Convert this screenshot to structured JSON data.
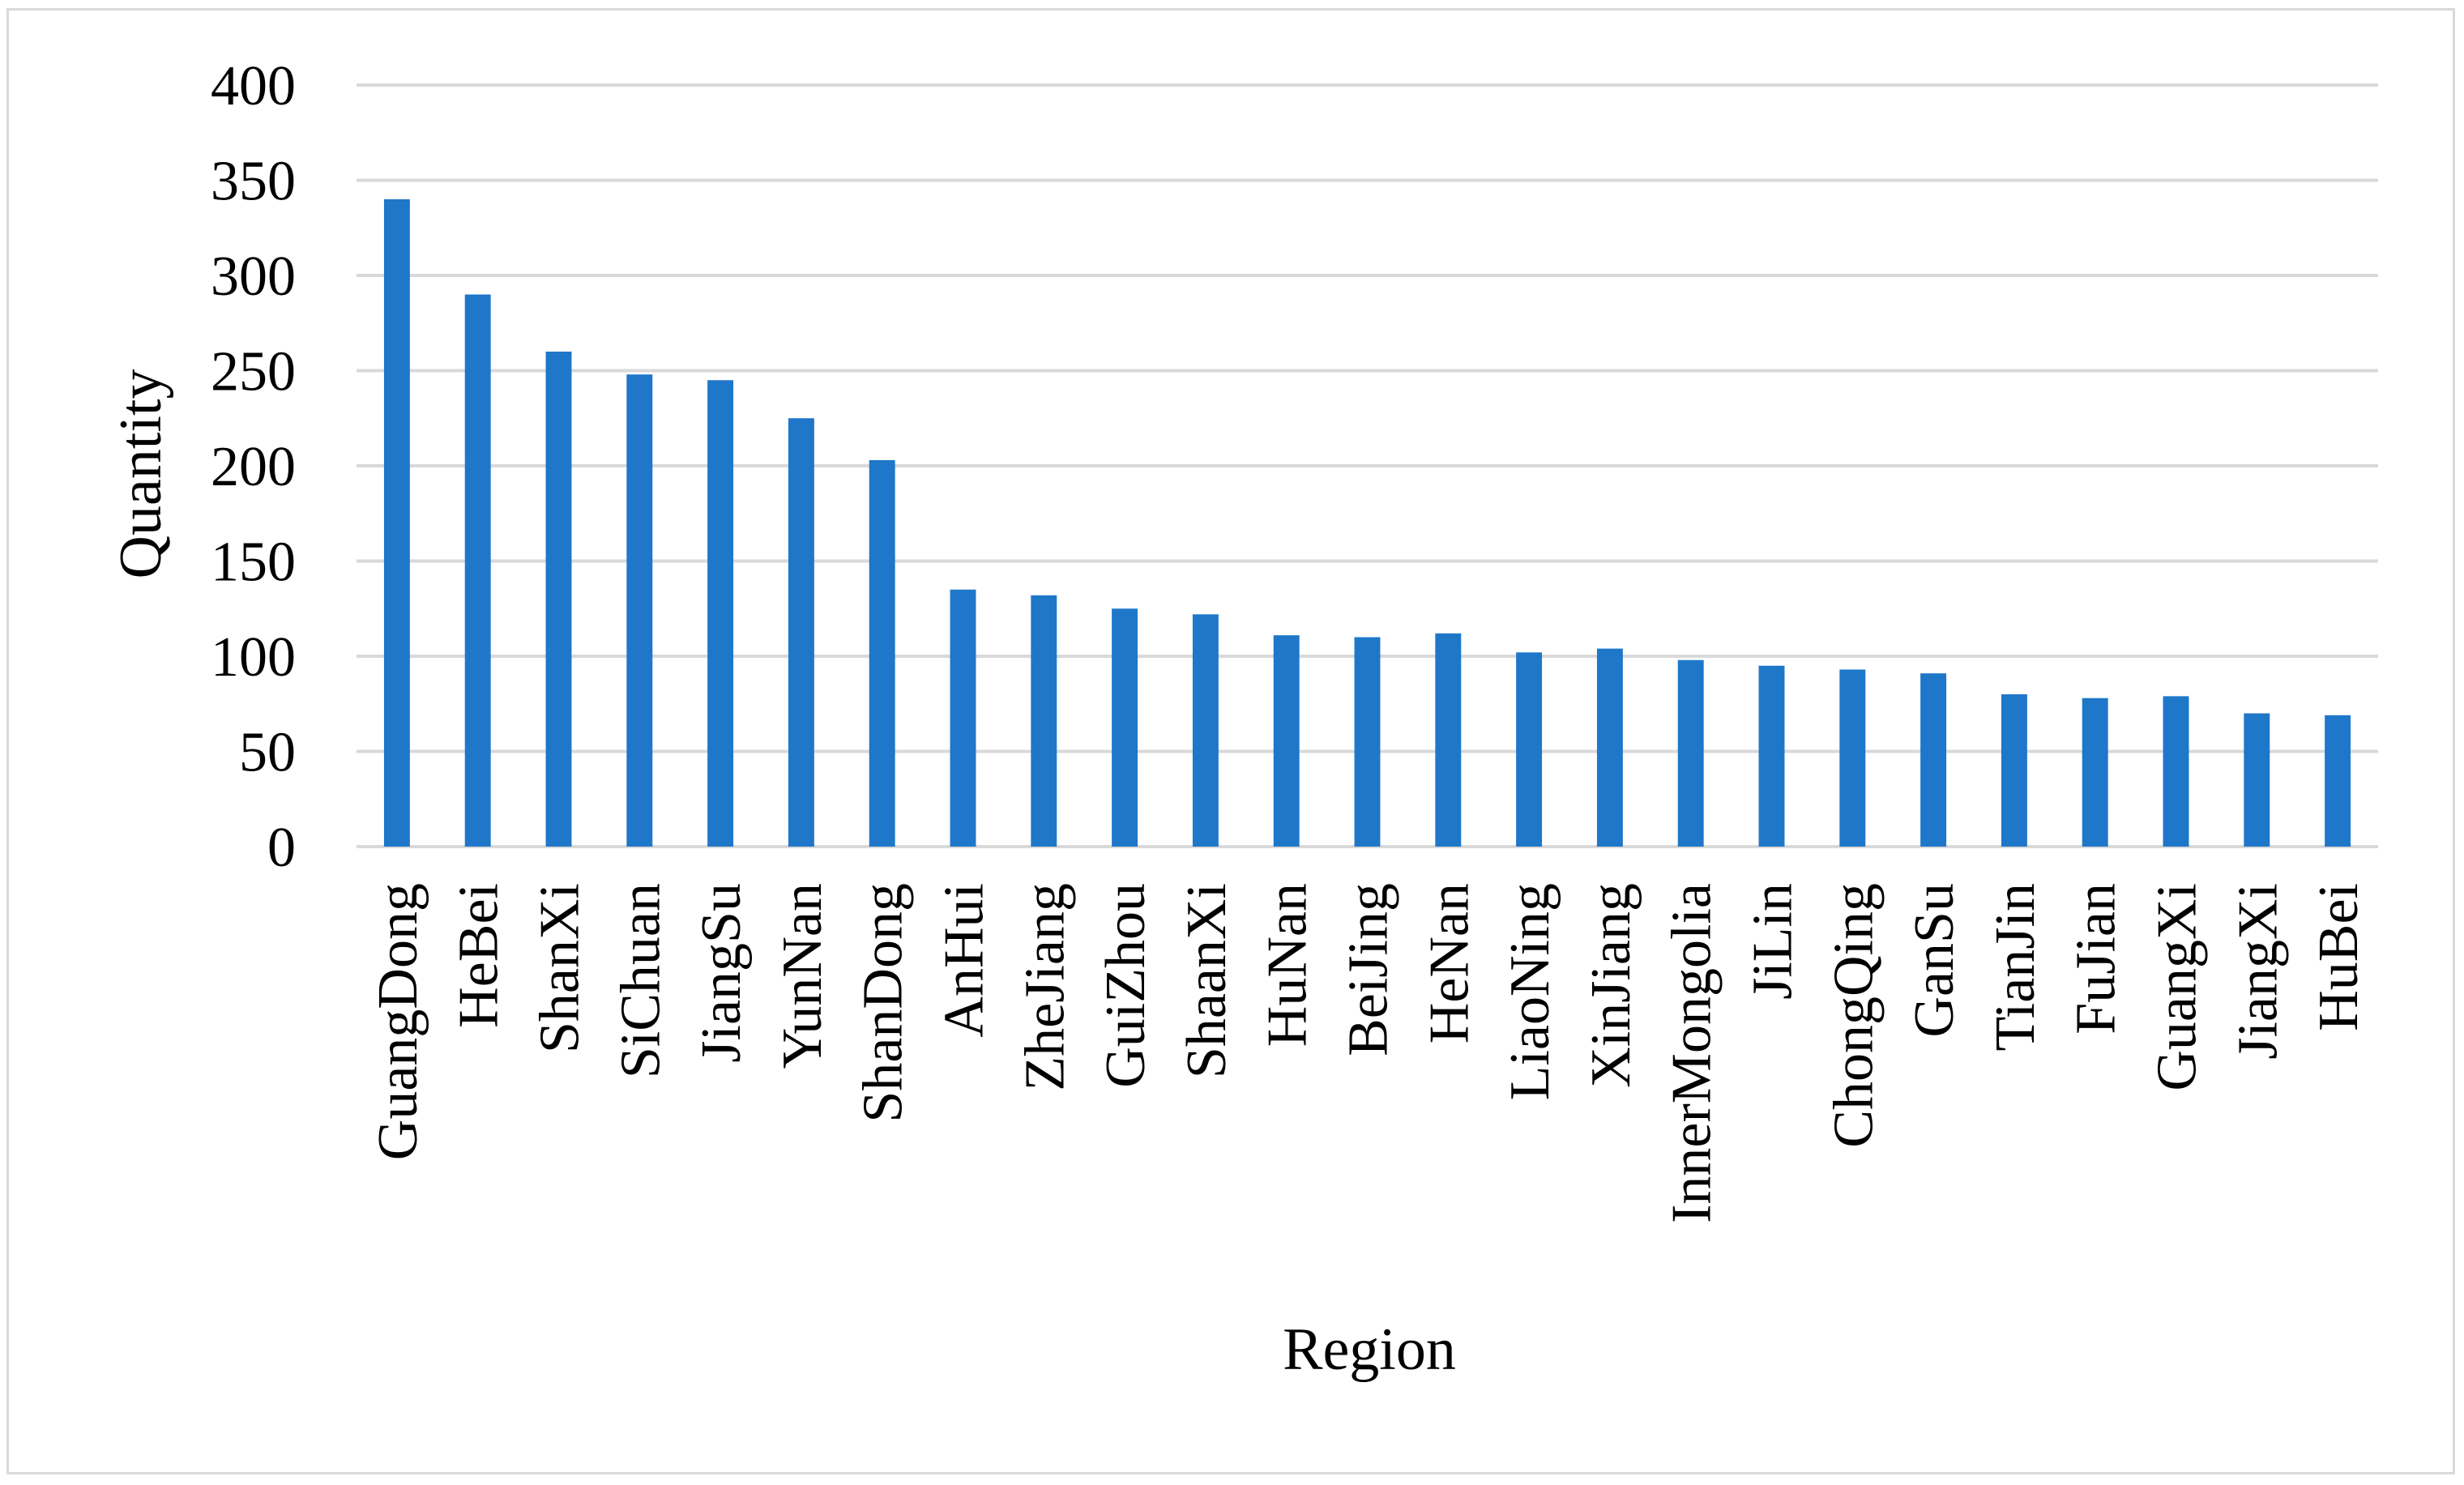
{
  "chart_data": {
    "type": "bar",
    "title": "",
    "xlabel": "Region",
    "ylabel": "Quantity",
    "ylim": [
      0,
      400
    ],
    "yticks": [
      "0",
      "50",
      "100",
      "150",
      "200",
      "250",
      "300",
      "350",
      "400"
    ],
    "grid": true,
    "legend": "none",
    "bar_color": "#1f77c9",
    "grid_color": "#d9d9d9",
    "categories": [
      "GuangDong",
      "HeBei",
      "ShanXi",
      "SiChuan",
      "JiangSu",
      "YunNan",
      "ShanDong",
      "AnHui",
      "ZheJiang",
      "GuiZhou",
      "ShaanXi",
      "HuNan",
      "BeiJing",
      "HeNan",
      "LiaoNing",
      "XinJiang",
      "InnerMongolia",
      "JiLin",
      "ChongQing",
      "GanSu",
      "TianJin",
      "FuJian",
      "GuangXi",
      "JiangXi",
      "HuBei"
    ],
    "values": [
      340,
      290,
      260,
      248,
      245,
      225,
      203,
      135,
      132,
      125,
      122,
      111,
      110,
      112,
      102,
      104,
      98,
      95,
      93,
      91,
      80,
      78,
      79,
      70,
      69
    ]
  }
}
